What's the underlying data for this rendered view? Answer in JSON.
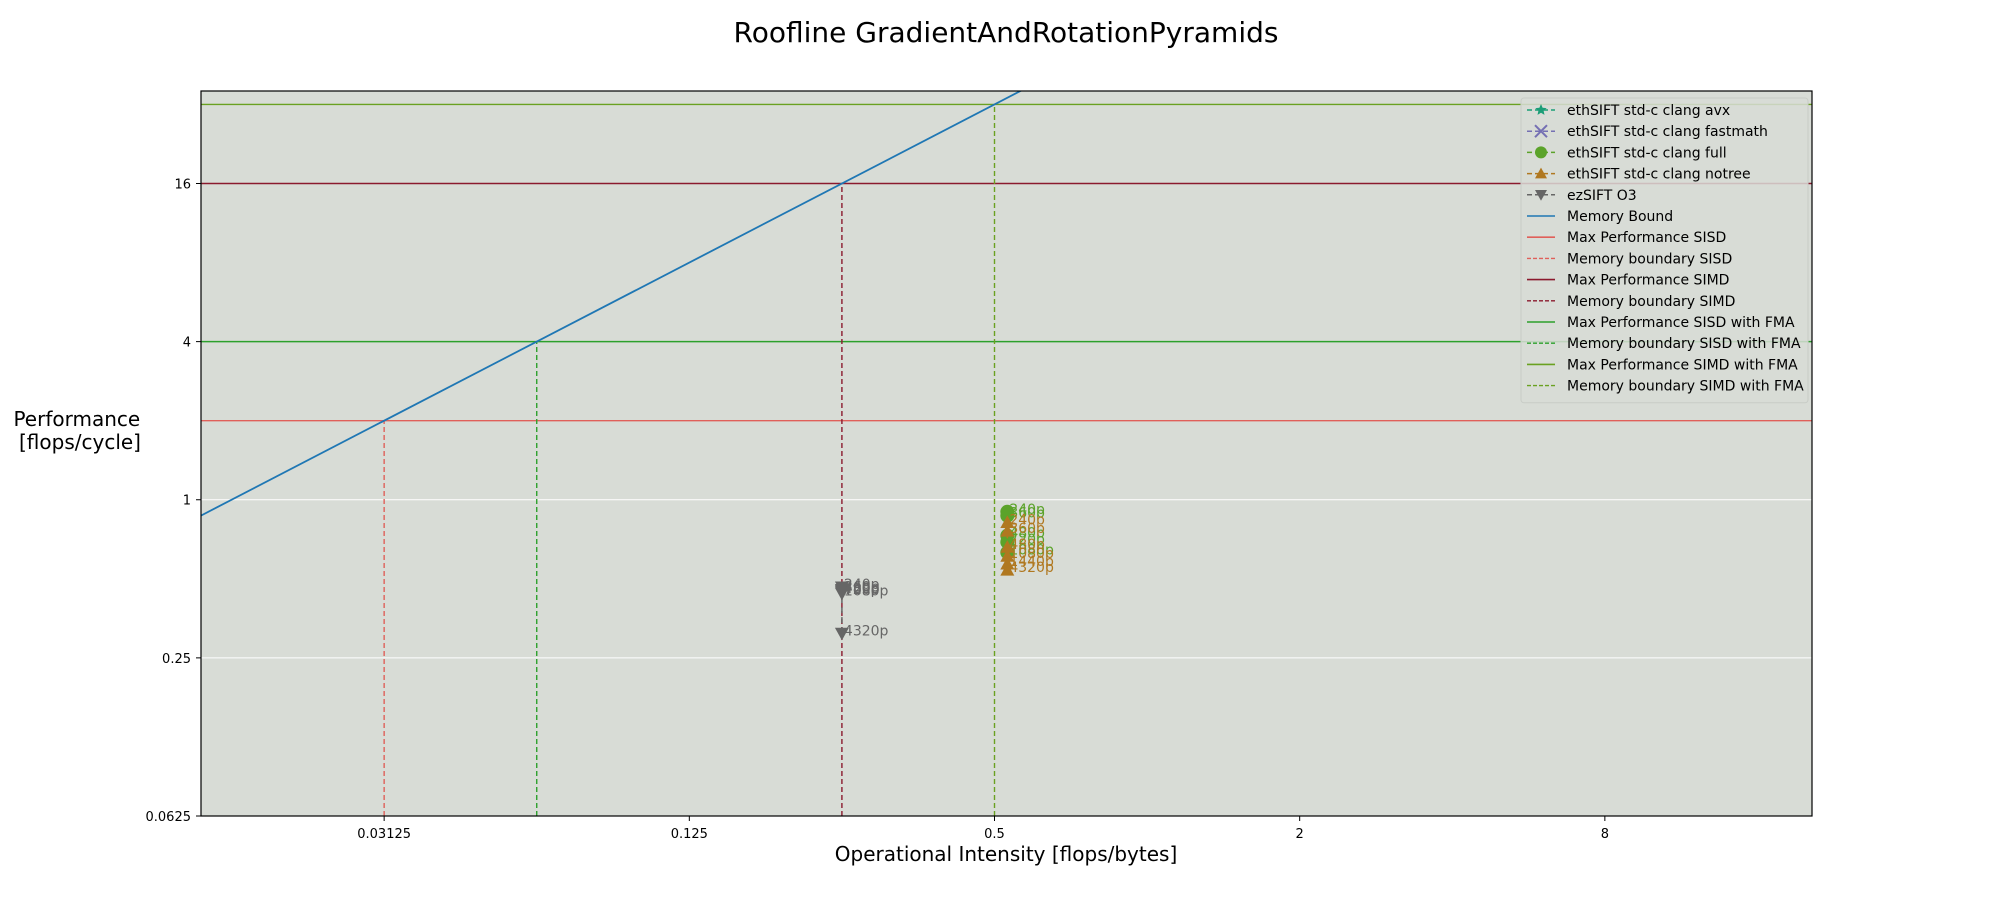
{
  "chart_data": {
    "type": "line",
    "title": "Roofline GradientAndRotationPyramids",
    "xlabel": "Operational Intensity [flops/bytes]",
    "ylabel_lines": [
      "Performance",
      "[flops/cycle]"
    ],
    "x_scale": "log2",
    "y_scale": "log2",
    "xlim": [
      0.0136,
      20.5
    ],
    "ylim": [
      0.0625,
      36
    ],
    "x_ticks": [
      0.03125,
      0.125,
      0.5,
      2,
      8
    ],
    "x_tick_labels": [
      "0.03125",
      "0.125",
      "0.5",
      "2",
      "8"
    ],
    "y_ticks": [
      0.0625,
      0.25,
      1,
      4,
      16
    ],
    "y_tick_labels": [
      "0.0625",
      "0.25",
      "1",
      "4",
      "16"
    ],
    "grid": "horizontal",
    "background": "#d8dcd6",
    "legend_position": "top-right",
    "memory_bound_slope": 64,
    "roof_lines": [
      {
        "name": "Max Performance SISD",
        "value": 2,
        "color": "#e0605a"
      },
      {
        "name": "Max Performance SIMD",
        "value": 16,
        "color": "#8b1a2e"
      },
      {
        "name": "Max Performance SISD with FMA",
        "value": 4,
        "color": "#2ca02c"
      },
      {
        "name": "Max Performance SIMD with FMA",
        "value": 32,
        "color": "#6aa121"
      }
    ],
    "boundary_lines": [
      {
        "name": "Memory boundary SISD",
        "x": 0.03125,
        "color": "#e0605a"
      },
      {
        "name": "Memory boundary SIMD",
        "x": 0.25,
        "color": "#8b1a2e"
      },
      {
        "name": "Memory boundary SISD with FMA",
        "x": 0.0625,
        "color": "#2ca02c"
      },
      {
        "name": "Memory boundary SIMD with FMA",
        "x": 0.5,
        "color": "#6aa121"
      }
    ],
    "memory_bound": {
      "name": "Memory Bound",
      "color": "#1f77b4"
    },
    "series": [
      {
        "name": "ethSIFT std-c clang avx",
        "color": "#1b9e77",
        "marker": "star",
        "points": []
      },
      {
        "name": "ethSIFT std-c clang fastmath",
        "color": "#7570b3",
        "marker": "x",
        "points": []
      },
      {
        "name": "ethSIFT std-c clang full",
        "color": "#5ba32a",
        "marker": "circle",
        "points": [
          {
            "x": 0.53,
            "y": 0.9,
            "label": "240p"
          },
          {
            "x": 0.53,
            "y": 0.87,
            "label": "360p"
          },
          {
            "x": 0.53,
            "y": 0.73,
            "label": "480p"
          },
          {
            "x": 0.53,
            "y": 0.69,
            "label": "720p"
          },
          {
            "x": 0.53,
            "y": 0.63,
            "label": "1080p"
          }
        ]
      },
      {
        "name": "ethSIFT std-c clang notree",
        "color": "#b07820",
        "marker": "triangle-up",
        "points": [
          {
            "x": 0.53,
            "y": 0.82,
            "label": "240p"
          },
          {
            "x": 0.53,
            "y": 0.76,
            "label": "360p"
          },
          {
            "x": 0.53,
            "y": 0.66,
            "label": "480p"
          },
          {
            "x": 0.53,
            "y": 0.61,
            "label": "1080p"
          },
          {
            "x": 0.53,
            "y": 0.57,
            "label": "1440p"
          },
          {
            "x": 0.53,
            "y": 0.54,
            "label": "4320p"
          }
        ]
      },
      {
        "name": "ezSIFT O3",
        "color": "#666666",
        "marker": "triangle-down",
        "points": [
          {
            "x": 0.25,
            "y": 0.465,
            "label": "240p"
          },
          {
            "x": 0.25,
            "y": 0.455,
            "label": "360p"
          },
          {
            "x": 0.25,
            "y": 0.45,
            "label": "480p"
          },
          {
            "x": 0.25,
            "y": 0.445,
            "label": "720p"
          },
          {
            "x": 0.25,
            "y": 0.44,
            "label": "1080p"
          },
          {
            "x": 0.25,
            "y": 0.31,
            "label": "4320p"
          }
        ]
      }
    ],
    "legend_entries": [
      {
        "label": "ethSIFT std-c clang avx",
        "kind": "marker",
        "marker": "star",
        "color": "#1b9e77"
      },
      {
        "label": "ethSIFT std-c clang fastmath",
        "kind": "marker",
        "marker": "x",
        "color": "#7570b3"
      },
      {
        "label": "ethSIFT std-c clang full",
        "kind": "marker",
        "marker": "circle",
        "color": "#5ba32a"
      },
      {
        "label": "ethSIFT std-c clang notree",
        "kind": "marker",
        "marker": "triangle-up",
        "color": "#b07820"
      },
      {
        "label": "ezSIFT O3",
        "kind": "marker",
        "marker": "triangle-down",
        "color": "#666666"
      },
      {
        "label": "Memory Bound",
        "kind": "solid",
        "color": "#1f77b4"
      },
      {
        "label": "Max Performance SISD",
        "kind": "solid",
        "color": "#e0605a"
      },
      {
        "label": "Memory boundary SISD",
        "kind": "dashed",
        "color": "#e0605a"
      },
      {
        "label": "Max Performance SIMD",
        "kind": "solid",
        "color": "#8b1a2e"
      },
      {
        "label": "Memory boundary SIMD",
        "kind": "dashed",
        "color": "#8b1a2e"
      },
      {
        "label": "Max Performance SISD with FMA",
        "kind": "solid",
        "color": "#2ca02c"
      },
      {
        "label": "Memory boundary SISD with FMA",
        "kind": "dashed",
        "color": "#2ca02c"
      },
      {
        "label": "Max Performance SIMD with FMA",
        "kind": "solid",
        "color": "#6aa121"
      },
      {
        "label": "Memory boundary SIMD with FMA",
        "kind": "dashed",
        "color": "#6aa121"
      }
    ]
  }
}
